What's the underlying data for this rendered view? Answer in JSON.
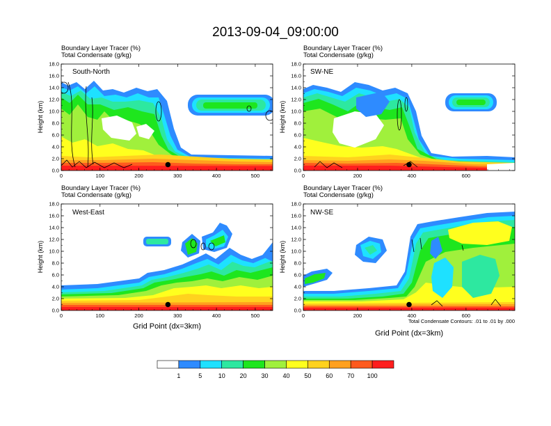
{
  "title": "2013-09-04_09:00:00",
  "xlabel": "Grid Point (dx=3km)",
  "ylabel": "Height (km)",
  "header_line1": "Boundary Layer Tracer   (%)",
  "header_line2": "Total Condensate   (g/kg)",
  "contour_note": "Total Condensate Contours: .01 to .01 by .000",
  "colorbar": {
    "colors": [
      "#ffffff",
      "#2e8bff",
      "#1ee1ff",
      "#2de8a0",
      "#1ee61e",
      "#a0f03c",
      "#ffff1e",
      "#ffd21e",
      "#ffa01e",
      "#ff5a1e",
      "#ff1e1e"
    ],
    "labels": [
      "1",
      "5",
      "10",
      "20",
      "30",
      "40",
      "50",
      "60",
      "70",
      "100"
    ]
  },
  "chart_data": [
    {
      "type": "heatmap",
      "panel_label": "South-North",
      "xlim": [
        0,
        545
      ],
      "ylim": [
        0,
        18
      ],
      "xticks": [
        0,
        100,
        200,
        300,
        400,
        500
      ],
      "yticks": [
        "0.0",
        "2.0",
        "4.0",
        "6.0",
        "8.0",
        "10.0",
        "12.0",
        "14.0",
        "16.0",
        "18.0"
      ],
      "marker": {
        "x": 275,
        "y": 1.0
      },
      "tracer_levels_pct": [
        1,
        5,
        10,
        20,
        30,
        40,
        50,
        60,
        70,
        100
      ]
    },
    {
      "type": "heatmap",
      "panel_label": "SW-NE",
      "xlim": [
        0,
        780
      ],
      "ylim": [
        0,
        18
      ],
      "xticks": [
        0,
        200,
        400,
        600
      ],
      "yticks": [
        "0.0",
        "2.0",
        "4.0",
        "6.0",
        "8.0",
        "10.0",
        "12.0",
        "14.0",
        "16.0",
        "18.0"
      ],
      "marker": {
        "x": 390,
        "y": 1.0
      },
      "tracer_levels_pct": [
        1,
        5,
        10,
        20,
        30,
        40,
        50,
        60,
        70,
        100
      ]
    },
    {
      "type": "heatmap",
      "panel_label": "West-East",
      "xlim": [
        0,
        545
      ],
      "ylim": [
        0,
        18
      ],
      "xticks": [
        0,
        100,
        200,
        300,
        400,
        500
      ],
      "yticks": [
        "0.0",
        "2.0",
        "4.0",
        "6.0",
        "8.0",
        "10.0",
        "12.0",
        "14.0",
        "16.0",
        "18.0"
      ],
      "marker": {
        "x": 275,
        "y": 1.0
      },
      "tracer_levels_pct": [
        1,
        5,
        10,
        20,
        30,
        40,
        50,
        60,
        70,
        100
      ]
    },
    {
      "type": "heatmap",
      "panel_label": "NW-SE",
      "xlim": [
        0,
        780
      ],
      "ylim": [
        0,
        18
      ],
      "xticks": [
        0,
        200,
        400,
        600
      ],
      "yticks": [
        "0.0",
        "2.0",
        "4.0",
        "6.0",
        "8.0",
        "10.0",
        "12.0",
        "14.0",
        "16.0",
        "18.0"
      ],
      "marker": {
        "x": 390,
        "y": 1.0
      },
      "tracer_levels_pct": [
        1,
        5,
        10,
        20,
        30,
        40,
        50,
        60,
        70,
        100
      ]
    }
  ]
}
